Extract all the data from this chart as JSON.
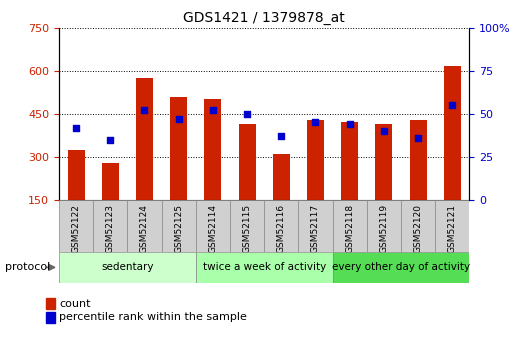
{
  "title": "GDS1421 / 1379878_at",
  "samples": [
    "GSM52122",
    "GSM52123",
    "GSM52124",
    "GSM52125",
    "GSM52114",
    "GSM52115",
    "GSM52116",
    "GSM52117",
    "GSM52118",
    "GSM52119",
    "GSM52120",
    "GSM52121"
  ],
  "counts": [
    325,
    280,
    575,
    510,
    500,
    415,
    310,
    430,
    420,
    415,
    430,
    615
  ],
  "percentile_ranks": [
    42,
    35,
    52,
    47,
    52,
    50,
    37,
    45,
    44,
    40,
    36,
    55
  ],
  "bar_bottom": 150,
  "ylim_left": [
    150,
    750
  ],
  "ylim_right": [
    0,
    100
  ],
  "yticks_left": [
    150,
    300,
    450,
    600,
    750
  ],
  "yticks_right": [
    0,
    25,
    50,
    75,
    100
  ],
  "bar_color": "#cc2200",
  "marker_color": "#0000cc",
  "tick_bg_color": "#d0d0d0",
  "groups": [
    {
      "label": "sedentary",
      "start": 0,
      "end": 4,
      "color": "#ccffcc"
    },
    {
      "label": "twice a week of activity",
      "start": 4,
      "end": 8,
      "color": "#aaffaa"
    },
    {
      "label": "every other day of activity",
      "start": 8,
      "end": 12,
      "color": "#55dd55"
    }
  ],
  "legend_count_label": "count",
  "legend_pct_label": "percentile rank within the sample",
  "protocol_label": "protocol"
}
